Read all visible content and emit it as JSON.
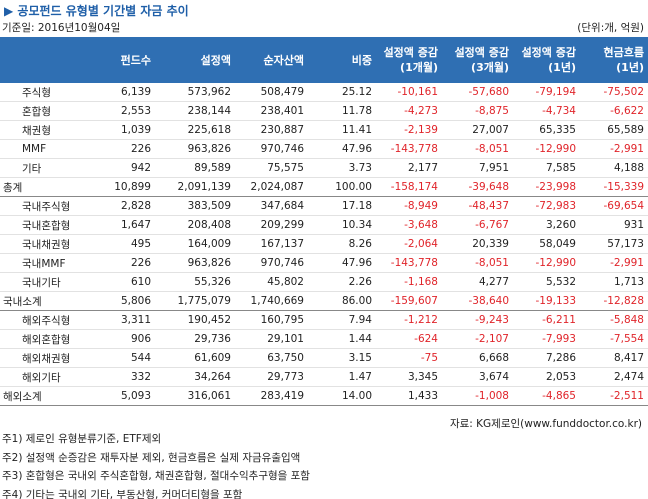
{
  "header": {
    "title": "▶ 공모펀드 유형별 기간별 자금 추이",
    "date": "기준일: 2016년10월04일",
    "unit": "(단위:개, 억원)"
  },
  "table": {
    "headers": [
      [
        "펀드수"
      ],
      [
        "설정액"
      ],
      [
        "순자산액"
      ],
      [
        "비중"
      ],
      [
        "설정액 증감",
        "(1개월)"
      ],
      [
        "설정액 증감",
        "(3개월)"
      ],
      [
        "설정액 증감",
        "(1년)"
      ],
      [
        "현금흐름",
        "(1년)"
      ]
    ],
    "rows": [
      [
        "주식형",
        "6,139",
        "573,962",
        "508,479",
        "25.12",
        "-10,161",
        "-57,680",
        "-79,194",
        "-75,502"
      ],
      [
        "혼합형",
        "2,553",
        "238,144",
        "238,401",
        "11.78",
        "-4,273",
        "-8,875",
        "-4,734",
        "-6,622"
      ],
      [
        "채권형",
        "1,039",
        "225,618",
        "230,887",
        "11.41",
        "-2,139",
        "27,007",
        "65,335",
        "65,589"
      ],
      [
        "MMF",
        "226",
        "963,826",
        "970,746",
        "47.96",
        "-143,778",
        "-8,051",
        "-12,990",
        "-2,991"
      ],
      [
        "기타",
        "942",
        "89,589",
        "75,575",
        "3.73",
        "2,177",
        "7,951",
        "7,585",
        "4,188"
      ],
      [
        "총계",
        "10,899",
        "2,091,139",
        "2,024,087",
        "100.00",
        "-158,174",
        "-39,648",
        "-23,998",
        "-15,339"
      ],
      [
        "국내주식형",
        "2,828",
        "383,509",
        "347,684",
        "17.18",
        "-8,949",
        "-48,437",
        "-72,983",
        "-69,654"
      ],
      [
        "국내혼합형",
        "1,647",
        "208,408",
        "209,299",
        "10.34",
        "-3,648",
        "-6,767",
        "3,260",
        "931"
      ],
      [
        "국내채권형",
        "495",
        "164,009",
        "167,137",
        "8.26",
        "-2,064",
        "20,339",
        "58,049",
        "57,173"
      ],
      [
        "국내MMF",
        "226",
        "963,826",
        "970,746",
        "47.96",
        "-143,778",
        "-8,051",
        "-12,990",
        "-2,991"
      ],
      [
        "국내기타",
        "610",
        "55,326",
        "45,802",
        "2.26",
        "-1,168",
        "4,277",
        "5,532",
        "1,713"
      ],
      [
        "국내소계",
        "5,806",
        "1,775,079",
        "1,740,669",
        "86.00",
        "-159,607",
        "-38,640",
        "-19,133",
        "-12,828"
      ],
      [
        "해외주식형",
        "3,311",
        "190,452",
        "160,795",
        "7.94",
        "-1,212",
        "-9,243",
        "-6,211",
        "-5,848"
      ],
      [
        "해외혼합형",
        "906",
        "29,736",
        "29,101",
        "1.44",
        "-624",
        "-2,107",
        "-7,993",
        "-7,554"
      ],
      [
        "해외채권형",
        "544",
        "61,609",
        "63,750",
        "3.15",
        "-75",
        "6,668",
        "7,286",
        "8,417"
      ],
      [
        "해외기타",
        "332",
        "34,264",
        "29,773",
        "1.47",
        "3,345",
        "3,674",
        "2,053",
        "2,474"
      ],
      [
        "해외소계",
        "5,093",
        "316,061",
        "283,419",
        "14.00",
        "1,433",
        "-1,008",
        "-4,865",
        "-2,511"
      ]
    ]
  },
  "source": "자료: KG제로인(www.funddoctor.co.kr)",
  "notes": [
    "주1) 제로인 유형분류기준, ETF제외",
    "주2) 설정액 순증감은 재투자분 제외, 현금흐름은 실제 자금유출입액",
    "주3) 혼합형은 국내외 주식혼합형, 채권혼합형, 절대수익추구형을 포함",
    "주4) 기타는 국내외 기타, 부동산형, 커머더티형을 포함"
  ]
}
